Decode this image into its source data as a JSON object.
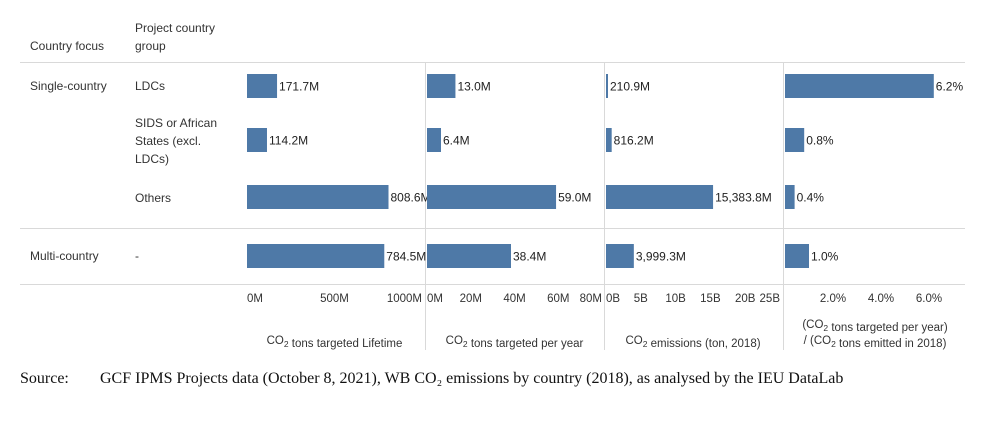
{
  "headers": {
    "country_focus": "Country focus",
    "project_group_line1": "Project country",
    "project_group_line2": "group"
  },
  "rows": [
    {
      "focus": "Single-country",
      "group": [
        "LDCs"
      ]
    },
    {
      "focus": "",
      "group": [
        "SIDS or African",
        "States (excl.",
        "LDCs)"
      ]
    },
    {
      "focus": "",
      "group": [
        "Others"
      ]
    },
    {
      "focus": "Multi-country",
      "group": [
        "-"
      ]
    }
  ],
  "colors": {
    "bar": "#4e79a7",
    "grid": "#d9d9d9",
    "text": "#333333"
  },
  "chart_data": [
    {
      "type": "bar",
      "orientation": "horizontal",
      "categories": [
        "LDCs",
        "SIDS or African States (excl. LDCs)",
        "Others",
        "-"
      ],
      "values": [
        171.7,
        114.2,
        808.6,
        784.5
      ],
      "data_labels": [
        "171.7M",
        "114.2M",
        "808.6M",
        "784.5M"
      ],
      "xlim": [
        0,
        1000
      ],
      "ticks": [
        0,
        500,
        1000
      ],
      "tick_labels": [
        "0M",
        "500M",
        "1000M"
      ],
      "xlabel": [
        "CO2 tons targeted Lifetime"
      ]
    },
    {
      "type": "bar",
      "orientation": "horizontal",
      "categories": [
        "LDCs",
        "SIDS or African States (excl. LDCs)",
        "Others",
        "-"
      ],
      "values": [
        13.0,
        6.4,
        59.0,
        38.4
      ],
      "data_labels": [
        "13.0M",
        "6.4M",
        "59.0M",
        "38.4M"
      ],
      "xlim": [
        0,
        80
      ],
      "ticks": [
        0,
        20,
        40,
        60,
        80
      ],
      "tick_labels": [
        "0M",
        "20M",
        "40M",
        "60M",
        "80M"
      ],
      "xlabel": [
        "CO2 tons targeted per year"
      ]
    },
    {
      "type": "bar",
      "orientation": "horizontal",
      "categories": [
        "LDCs",
        "SIDS or African States (excl. LDCs)",
        "Others",
        "-"
      ],
      "values": [
        210.9,
        816.2,
        15383.8,
        3999.3
      ],
      "data_labels": [
        "210.9M",
        "816.2M",
        "15,383.8M",
        "3,999.3M"
      ],
      "xlim": [
        0,
        25000
      ],
      "ticks": [
        0,
        5000,
        10000,
        15000,
        20000,
        25000
      ],
      "tick_labels": [
        "0B",
        "5B",
        "10B",
        "15B",
        "20B",
        "25B"
      ],
      "xlabel": [
        "CO2 emissions (ton, 2018)"
      ]
    },
    {
      "type": "bar",
      "orientation": "horizontal",
      "categories": [
        "LDCs",
        "SIDS or African States (excl. LDCs)",
        "Others",
        "-"
      ],
      "values": [
        6.2,
        0.8,
        0.4,
        1.0
      ],
      "data_labels": [
        "6.2%",
        "0.8%",
        "0.4%",
        "1.0%"
      ],
      "xlim": [
        0,
        7.5
      ],
      "ticks": [
        2,
        4,
        6
      ],
      "tick_labels": [
        "2.0%",
        "4.0%",
        "6.0%"
      ],
      "xlabel": [
        "(CO2 tons targeted per year)",
        "/ (CO2 tons emitted in 2018)"
      ]
    }
  ],
  "source": {
    "label": "Source:",
    "text": "GCF IPMS Projects data (October 8, 2021), WB CO₂ emissions by country (2018), as analysed by the IEU DataLab"
  }
}
